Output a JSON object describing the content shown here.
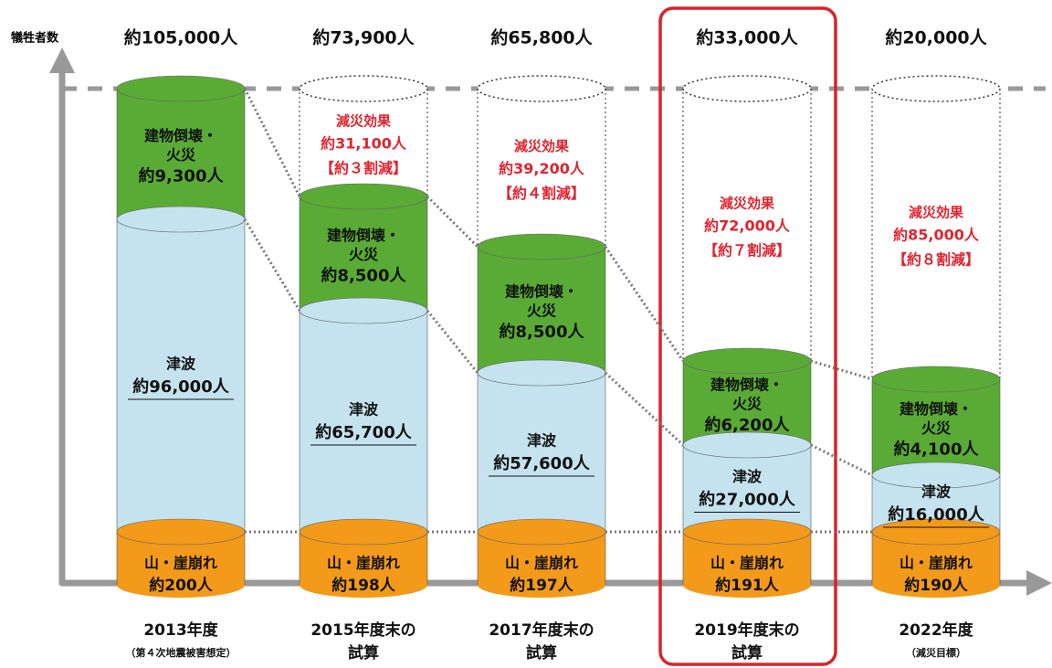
{
  "y_axis_label": "犠牲者数",
  "columns": [
    {
      "total": "約105,000人",
      "label": [
        "2013年度",
        "（第４次地震被害想定）"
      ],
      "building": {
        "name": [
          "建物倒壊・",
          "火災"
        ],
        "value": "約9,300人"
      },
      "tsunami": {
        "name": "津波",
        "value": "約96,000人"
      },
      "landslide": {
        "name": "山・崖崩れ",
        "value": "約200人"
      }
    },
    {
      "total": "約73,900人",
      "label": [
        "2015年度末の",
        "試算"
      ],
      "reduction": {
        "title": "減災効果",
        "value": "約31,100人",
        "ratio": "【約３割減】"
      },
      "building": {
        "name": [
          "建物倒壊・",
          "火災"
        ],
        "value": "約8,500人"
      },
      "tsunami": {
        "name": "津波",
        "value": "約65,700人"
      },
      "landslide": {
        "name": "山・崖崩れ",
        "value": "約198人"
      }
    },
    {
      "total": "約65,800人",
      "label": [
        "2017年度末の",
        "試算"
      ],
      "reduction": {
        "title": "減災効果",
        "value": "約39,200人",
        "ratio": "【約４割減】"
      },
      "building": {
        "name": [
          "建物倒壊・",
          "火災"
        ],
        "value": "約8,500人"
      },
      "tsunami": {
        "name": "津波",
        "value": "約57,600人"
      },
      "landslide": {
        "name": "山・崖崩れ",
        "value": "約197人"
      }
    },
    {
      "total": "約33,000人",
      "label": [
        "2019年度末の",
        "試算"
      ],
      "reduction": {
        "title": "減災効果",
        "value": "約72,000人",
        "ratio": "【約７割減】"
      },
      "building": {
        "name": [
          "建物倒壊・",
          "火災"
        ],
        "value": "約6,200人"
      },
      "tsunami": {
        "name": "津波",
        "value": "約27,000人"
      },
      "landslide": {
        "name": "山・崖崩れ",
        "value": "約191人"
      }
    },
    {
      "total": "約20,000人",
      "label": [
        "2022年度",
        "（減災目標）"
      ],
      "reduction": {
        "title": "減災効果",
        "value": "約85,000人",
        "ratio": "【約８割減】"
      },
      "building": {
        "name": [
          "建物倒壊・",
          "火災"
        ],
        "value": "約4,100人"
      },
      "tsunami": {
        "name": "津波",
        "value": "約16,000人"
      },
      "landslide": {
        "name": "山・崖崩れ",
        "value": "約190人"
      }
    }
  ]
}
